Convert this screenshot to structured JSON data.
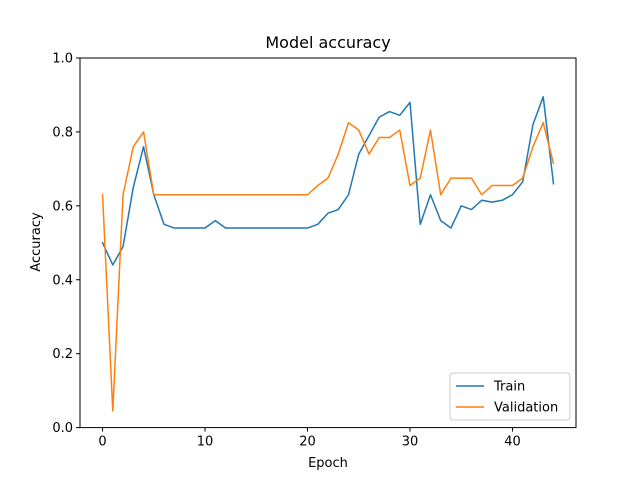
{
  "chart_data": {
    "type": "line",
    "title": "Model accuracy",
    "xlabel": "Epoch",
    "ylabel": "Accuracy",
    "xlim": [
      -2.2,
      46.2
    ],
    "ylim": [
      0.0,
      1.0
    ],
    "xticks": [
      0,
      10,
      20,
      30,
      40
    ],
    "yticks": [
      0.0,
      0.2,
      0.4,
      0.6,
      0.8,
      1.0
    ],
    "ytick_labels": [
      "0.0",
      "0.2",
      "0.4",
      "0.6",
      "0.8",
      "1.0"
    ],
    "grid": false,
    "legend_position": "lower right",
    "x": [
      0,
      1,
      2,
      3,
      4,
      5,
      6,
      7,
      8,
      9,
      10,
      11,
      12,
      13,
      14,
      15,
      16,
      17,
      18,
      19,
      20,
      21,
      22,
      23,
      24,
      25,
      26,
      27,
      28,
      29,
      30,
      31,
      32,
      33,
      34,
      35,
      36,
      37,
      38,
      39,
      40,
      41,
      42,
      43,
      44
    ],
    "series": [
      {
        "name": "Train",
        "color": "#1f77b4",
        "values": [
          0.5,
          0.44,
          0.49,
          0.65,
          0.76,
          0.63,
          0.55,
          0.54,
          0.54,
          0.54,
          0.54,
          0.56,
          0.54,
          0.54,
          0.54,
          0.54,
          0.54,
          0.54,
          0.54,
          0.54,
          0.54,
          0.55,
          0.58,
          0.59,
          0.63,
          0.74,
          0.79,
          0.84,
          0.855,
          0.845,
          0.88,
          0.55,
          0.63,
          0.56,
          0.54,
          0.6,
          0.59,
          0.615,
          0.61,
          0.615,
          0.63,
          0.665,
          0.82,
          0.895,
          0.66
        ]
      },
      {
        "name": "Validation",
        "color": "#ff7f0e",
        "values": [
          0.63,
          0.045,
          0.63,
          0.76,
          0.8,
          0.63,
          0.63,
          0.63,
          0.63,
          0.63,
          0.63,
          0.63,
          0.63,
          0.63,
          0.63,
          0.63,
          0.63,
          0.63,
          0.63,
          0.63,
          0.63,
          0.655,
          0.675,
          0.74,
          0.825,
          0.805,
          0.74,
          0.785,
          0.785,
          0.805,
          0.655,
          0.675,
          0.805,
          0.63,
          0.675,
          0.675,
          0.675,
          0.63,
          0.655,
          0.655,
          0.655,
          0.675,
          0.76,
          0.825,
          0.715
        ]
      }
    ]
  }
}
